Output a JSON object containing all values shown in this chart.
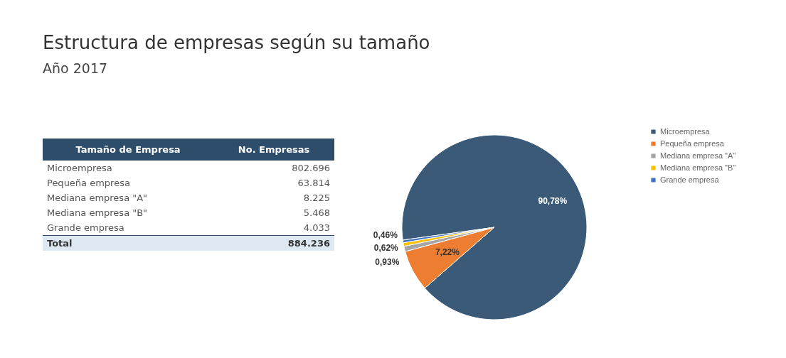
{
  "chart_data": [
    {
      "type": "other",
      "title": "Estructura de empresas según su tamaño",
      "subtitle": "Año 2017",
      "categories": [
        "Microempresa",
        "Pequeña empresa",
        "Mediana empresa \"A\"",
        "Mediana empresa \"B\"",
        "Grande empresa"
      ],
      "value_labels": [
        "802.696",
        "63.814",
        "8.225",
        "5.468",
        "4.033"
      ],
      "annotations": [
        "Tamaño de Empresa",
        "No. Empresas",
        "Total"
      ],
      "totals": [
        "884.236"
      ]
    },
    {
      "type": "pie",
      "categories": [
        "Microempresa",
        "Pequeña empresa",
        "Mediana empresa \"A\"",
        "Mediana empresa \"B\"",
        "Grande empresa"
      ],
      "values": [
        90.78,
        7.22,
        0.93,
        0.62,
        0.46
      ],
      "value_labels": [
        "90,78%",
        "7,22%",
        "0,93%",
        "0,62%",
        "0,46%"
      ],
      "colors": [
        "#3b5a78",
        "#ed7d31",
        "#a5a5a5",
        "#ffc000",
        "#4472c4"
      ],
      "legend": "right"
    }
  ]
}
